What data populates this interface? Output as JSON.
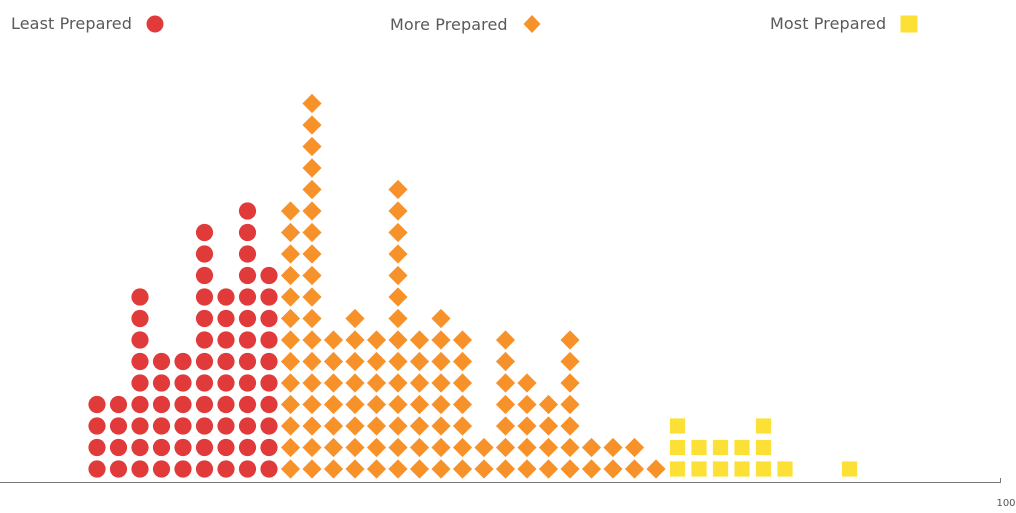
{
  "chart_data": {
    "type": "dot-histogram",
    "x_tick_label": "100",
    "series": [
      {
        "name": "Least Prepared",
        "marker": "circle",
        "color": "#e03a3a",
        "counts": [
          4,
          4,
          9,
          6,
          6,
          12,
          9,
          13,
          10
        ]
      },
      {
        "name": "More Prepared",
        "marker": "diamond",
        "color": "#f7922a",
        "counts": [
          13,
          18,
          7,
          8,
          7,
          14,
          7,
          8,
          7,
          2,
          7,
          5,
          4,
          7,
          2,
          2,
          2,
          1
        ]
      },
      {
        "name": "Most Prepared",
        "marker": "square",
        "color": "#fde036",
        "counts": [
          3,
          2,
          2,
          2,
          3,
          1,
          0,
          0,
          1
        ]
      }
    ]
  }
}
